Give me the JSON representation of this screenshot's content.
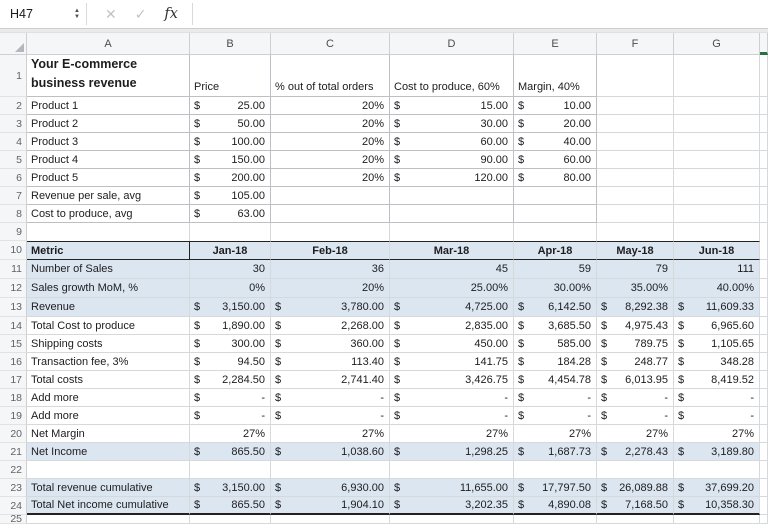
{
  "chrome": {
    "name_box": "H47",
    "spinner_up": "▲",
    "spinner_down": "▼",
    "cancel_glyph": "✕",
    "confirm_glyph": "✓",
    "fx_glyph": "fx",
    "formula_value": ""
  },
  "sheet": {
    "column_headers": [
      "A",
      "B",
      "C",
      "D",
      "E",
      "F",
      "G"
    ],
    "colors": {
      "band": "#dce6f1",
      "selection_green": "#217346"
    },
    "rows": [
      {
        "n": "1",
        "cells": [
          {
            "col": "A",
            "kind": "title",
            "text": "Your E-commerce\nbusiness revenue"
          },
          {
            "col": "B",
            "kind": "l",
            "text": "Price"
          },
          {
            "col": "C",
            "kind": "l",
            "text": "% out of total orders"
          },
          {
            "col": "D",
            "kind": "l",
            "text": "Cost to produce, 60%"
          },
          {
            "col": "E",
            "kind": "l",
            "text": "Margin, 40%"
          }
        ]
      },
      {
        "n": "2",
        "cells": [
          {
            "col": "A",
            "kind": "l",
            "text": "Product 1"
          },
          {
            "col": "B",
            "kind": "m",
            "cur": "$",
            "val": "25.00"
          },
          {
            "col": "C",
            "kind": "n",
            "text": "20%"
          },
          {
            "col": "D",
            "kind": "m",
            "cur": "$",
            "val": "15.00"
          },
          {
            "col": "E",
            "kind": "m",
            "cur": "$",
            "val": "10.00"
          }
        ]
      },
      {
        "n": "3",
        "cells": [
          {
            "col": "A",
            "kind": "l",
            "text": "Product 2"
          },
          {
            "col": "B",
            "kind": "m",
            "cur": "$",
            "val": "50.00"
          },
          {
            "col": "C",
            "kind": "n",
            "text": "20%"
          },
          {
            "col": "D",
            "kind": "m",
            "cur": "$",
            "val": "30.00"
          },
          {
            "col": "E",
            "kind": "m",
            "cur": "$",
            "val": "20.00"
          }
        ]
      },
      {
        "n": "4",
        "cells": [
          {
            "col": "A",
            "kind": "l",
            "text": "Product 3"
          },
          {
            "col": "B",
            "kind": "m",
            "cur": "$",
            "val": "100.00"
          },
          {
            "col": "C",
            "kind": "n",
            "text": "20%"
          },
          {
            "col": "D",
            "kind": "m",
            "cur": "$",
            "val": "60.00"
          },
          {
            "col": "E",
            "kind": "m",
            "cur": "$",
            "val": "40.00"
          }
        ]
      },
      {
        "n": "5",
        "cells": [
          {
            "col": "A",
            "kind": "l",
            "text": "Product 4"
          },
          {
            "col": "B",
            "kind": "m",
            "cur": "$",
            "val": "150.00"
          },
          {
            "col": "C",
            "kind": "n",
            "text": "20%"
          },
          {
            "col": "D",
            "kind": "m",
            "cur": "$",
            "val": "90.00"
          },
          {
            "col": "E",
            "kind": "m",
            "cur": "$",
            "val": "60.00"
          }
        ]
      },
      {
        "n": "6",
        "cells": [
          {
            "col": "A",
            "kind": "l",
            "text": "Product 5"
          },
          {
            "col": "B",
            "kind": "m",
            "cur": "$",
            "val": "200.00"
          },
          {
            "col": "C",
            "kind": "n",
            "text": "20%"
          },
          {
            "col": "D",
            "kind": "m",
            "cur": "$",
            "val": "120.00"
          },
          {
            "col": "E",
            "kind": "m",
            "cur": "$",
            "val": "80.00"
          }
        ]
      },
      {
        "n": "7",
        "cells": [
          {
            "col": "A",
            "kind": "l",
            "text": "Revenue per sale, avg"
          },
          {
            "col": "B",
            "kind": "m",
            "cur": "$",
            "val": "105.00"
          }
        ]
      },
      {
        "n": "8",
        "cells": [
          {
            "col": "A",
            "kind": "l",
            "text": "Cost to produce, avg"
          },
          {
            "col": "B",
            "kind": "m",
            "cur": "$",
            "val": "63.00"
          }
        ]
      },
      {
        "n": "9",
        "cells": []
      },
      {
        "n": "10",
        "head": true,
        "band": true,
        "cells": [
          {
            "col": "A",
            "kind": "l",
            "text": "Metric"
          },
          {
            "col": "B",
            "kind": "c",
            "text": "Jan-18"
          },
          {
            "col": "C",
            "kind": "c",
            "text": "Feb-18"
          },
          {
            "col": "D",
            "kind": "c",
            "text": "Mar-18"
          },
          {
            "col": "E",
            "kind": "c",
            "text": "Apr-18"
          },
          {
            "col": "F",
            "kind": "c",
            "text": "May-18"
          },
          {
            "col": "G",
            "kind": "c",
            "text": "Jun-18"
          }
        ]
      },
      {
        "n": "11",
        "band": true,
        "cells": [
          {
            "col": "A",
            "kind": "l",
            "text": "Number of Sales"
          },
          {
            "col": "B",
            "kind": "n",
            "text": "30"
          },
          {
            "col": "C",
            "kind": "n",
            "text": "36"
          },
          {
            "col": "D",
            "kind": "n",
            "text": "45"
          },
          {
            "col": "E",
            "kind": "n",
            "text": "59"
          },
          {
            "col": "F",
            "kind": "n",
            "text": "79"
          },
          {
            "col": "G",
            "kind": "n",
            "text": "111"
          }
        ]
      },
      {
        "n": "12",
        "band": true,
        "cells": [
          {
            "col": "A",
            "kind": "l",
            "text": "Sales growth MoM, %"
          },
          {
            "col": "B",
            "kind": "n",
            "text": "0%"
          },
          {
            "col": "C",
            "kind": "n",
            "text": "20%"
          },
          {
            "col": "D",
            "kind": "n",
            "text": "25.00%"
          },
          {
            "col": "E",
            "kind": "n",
            "text": "30.00%"
          },
          {
            "col": "F",
            "kind": "n",
            "text": "35.00%"
          },
          {
            "col": "G",
            "kind": "n",
            "text": "40.00%"
          }
        ]
      },
      {
        "n": "13",
        "band": true,
        "cells": [
          {
            "col": "A",
            "kind": "l",
            "text": "Revenue"
          },
          {
            "col": "B",
            "kind": "m",
            "cur": "$",
            "val": "3,150.00"
          },
          {
            "col": "C",
            "kind": "m",
            "cur": "$",
            "val": "3,780.00"
          },
          {
            "col": "D",
            "kind": "m",
            "cur": "$",
            "val": "4,725.00"
          },
          {
            "col": "E",
            "kind": "m",
            "cur": "$",
            "val": "6,142.50"
          },
          {
            "col": "F",
            "kind": "m",
            "cur": "$",
            "val": "8,292.38"
          },
          {
            "col": "G",
            "kind": "m",
            "cur": "$",
            "val": "11,609.33"
          }
        ]
      },
      {
        "n": "14",
        "cells": [
          {
            "col": "A",
            "kind": "l",
            "text": "Total Cost to produce"
          },
          {
            "col": "B",
            "kind": "m",
            "cur": "$",
            "val": "1,890.00"
          },
          {
            "col": "C",
            "kind": "m",
            "cur": "$",
            "val": "2,268.00"
          },
          {
            "col": "D",
            "kind": "m",
            "cur": "$",
            "val": "2,835.00"
          },
          {
            "col": "E",
            "kind": "m",
            "cur": "$",
            "val": "3,685.50"
          },
          {
            "col": "F",
            "kind": "m",
            "cur": "$",
            "val": "4,975.43"
          },
          {
            "col": "G",
            "kind": "m",
            "cur": "$",
            "val": "6,965.60"
          }
        ]
      },
      {
        "n": "15",
        "cells": [
          {
            "col": "A",
            "kind": "l",
            "text": "Shipping costs"
          },
          {
            "col": "B",
            "kind": "m",
            "cur": "$",
            "val": "300.00"
          },
          {
            "col": "C",
            "kind": "m",
            "cur": "$",
            "val": "360.00"
          },
          {
            "col": "D",
            "kind": "m",
            "cur": "$",
            "val": "450.00"
          },
          {
            "col": "E",
            "kind": "m",
            "cur": "$",
            "val": "585.00"
          },
          {
            "col": "F",
            "kind": "m",
            "cur": "$",
            "val": "789.75"
          },
          {
            "col": "G",
            "kind": "m",
            "cur": "$",
            "val": "1,105.65"
          }
        ]
      },
      {
        "n": "16",
        "cells": [
          {
            "col": "A",
            "kind": "l",
            "text": "Transaction fee, 3%"
          },
          {
            "col": "B",
            "kind": "m",
            "cur": "$",
            "val": "94.50"
          },
          {
            "col": "C",
            "kind": "m",
            "cur": "$",
            "val": "113.40"
          },
          {
            "col": "D",
            "kind": "m",
            "cur": "$",
            "val": "141.75"
          },
          {
            "col": "E",
            "kind": "m",
            "cur": "$",
            "val": "184.28"
          },
          {
            "col": "F",
            "kind": "m",
            "cur": "$",
            "val": "248.77"
          },
          {
            "col": "G",
            "kind": "m",
            "cur": "$",
            "val": "348.28"
          }
        ]
      },
      {
        "n": "17",
        "cells": [
          {
            "col": "A",
            "kind": "l",
            "text": "Total costs"
          },
          {
            "col": "B",
            "kind": "m",
            "cur": "$",
            "val": "2,284.50"
          },
          {
            "col": "C",
            "kind": "m",
            "cur": "$",
            "val": "2,741.40"
          },
          {
            "col": "D",
            "kind": "m",
            "cur": "$",
            "val": "3,426.75"
          },
          {
            "col": "E",
            "kind": "m",
            "cur": "$",
            "val": "4,454.78"
          },
          {
            "col": "F",
            "kind": "m",
            "cur": "$",
            "val": "6,013.95"
          },
          {
            "col": "G",
            "kind": "m",
            "cur": "$",
            "val": "8,419.52"
          }
        ]
      },
      {
        "n": "18",
        "cells": [
          {
            "col": "A",
            "kind": "l",
            "text": "Add more"
          },
          {
            "col": "B",
            "kind": "m",
            "cur": "$",
            "val": "-"
          },
          {
            "col": "C",
            "kind": "m",
            "cur": "$",
            "val": "-"
          },
          {
            "col": "D",
            "kind": "m",
            "cur": "$",
            "val": "-"
          },
          {
            "col": "E",
            "kind": "m",
            "cur": "$",
            "val": "-"
          },
          {
            "col": "F",
            "kind": "m",
            "cur": "$",
            "val": "-"
          },
          {
            "col": "G",
            "kind": "m",
            "cur": "$",
            "val": "-"
          }
        ]
      },
      {
        "n": "19",
        "cells": [
          {
            "col": "A",
            "kind": "l",
            "text": "Add more"
          },
          {
            "col": "B",
            "kind": "m",
            "cur": "$",
            "val": "-"
          },
          {
            "col": "C",
            "kind": "m",
            "cur": "$",
            "val": "-"
          },
          {
            "col": "D",
            "kind": "m",
            "cur": "$",
            "val": "-"
          },
          {
            "col": "E",
            "kind": "m",
            "cur": "$",
            "val": "-"
          },
          {
            "col": "F",
            "kind": "m",
            "cur": "$",
            "val": "-"
          },
          {
            "col": "G",
            "kind": "m",
            "cur": "$",
            "val": "-"
          }
        ]
      },
      {
        "n": "20",
        "cells": [
          {
            "col": "A",
            "kind": "l",
            "text": "Net Margin"
          },
          {
            "col": "B",
            "kind": "n",
            "text": "27%"
          },
          {
            "col": "C",
            "kind": "n",
            "text": "27%"
          },
          {
            "col": "D",
            "kind": "n",
            "text": "27%"
          },
          {
            "col": "E",
            "kind": "n",
            "text": "27%"
          },
          {
            "col": "F",
            "kind": "n",
            "text": "27%"
          },
          {
            "col": "G",
            "kind": "n",
            "text": "27%"
          }
        ]
      },
      {
        "n": "21",
        "band": true,
        "cells": [
          {
            "col": "A",
            "kind": "l",
            "text": "Net Income"
          },
          {
            "col": "B",
            "kind": "m",
            "cur": "$",
            "val": "865.50"
          },
          {
            "col": "C",
            "kind": "m",
            "cur": "$",
            "val": "1,038.60"
          },
          {
            "col": "D",
            "kind": "m",
            "cur": "$",
            "val": "1,298.25"
          },
          {
            "col": "E",
            "kind": "m",
            "cur": "$",
            "val": "1,687.73"
          },
          {
            "col": "F",
            "kind": "m",
            "cur": "$",
            "val": "2,278.43"
          },
          {
            "col": "G",
            "kind": "m",
            "cur": "$",
            "val": "3,189.80"
          }
        ]
      },
      {
        "n": "22",
        "cells": []
      },
      {
        "n": "23",
        "band": true,
        "cells": [
          {
            "col": "A",
            "kind": "l",
            "text": "Total revenue cumulative"
          },
          {
            "col": "B",
            "kind": "m",
            "cur": "$",
            "val": "3,150.00"
          },
          {
            "col": "C",
            "kind": "m",
            "cur": "$",
            "val": "6,930.00"
          },
          {
            "col": "D",
            "kind": "m",
            "cur": "$",
            "val": "11,655.00"
          },
          {
            "col": "E",
            "kind": "m",
            "cur": "$",
            "val": "17,797.50"
          },
          {
            "col": "F",
            "kind": "m",
            "cur": "$",
            "val": "26,089.88"
          },
          {
            "col": "G",
            "kind": "m",
            "cur": "$",
            "val": "37,699.20"
          }
        ]
      },
      {
        "n": "24",
        "band": true,
        "total": true,
        "cells": [
          {
            "col": "A",
            "kind": "l",
            "text": "Total Net income cumulative"
          },
          {
            "col": "B",
            "kind": "m",
            "cur": "$",
            "val": "865.50"
          },
          {
            "col": "C",
            "kind": "m",
            "cur": "$",
            "val": "1,904.10"
          },
          {
            "col": "D",
            "kind": "m",
            "cur": "$",
            "val": "3,202.35"
          },
          {
            "col": "E",
            "kind": "m",
            "cur": "$",
            "val": "4,890.08"
          },
          {
            "col": "F",
            "kind": "m",
            "cur": "$",
            "val": "7,168.50"
          },
          {
            "col": "G",
            "kind": "m",
            "cur": "$",
            "val": "10,358.30"
          }
        ]
      },
      {
        "n": "25",
        "cells": []
      }
    ]
  }
}
